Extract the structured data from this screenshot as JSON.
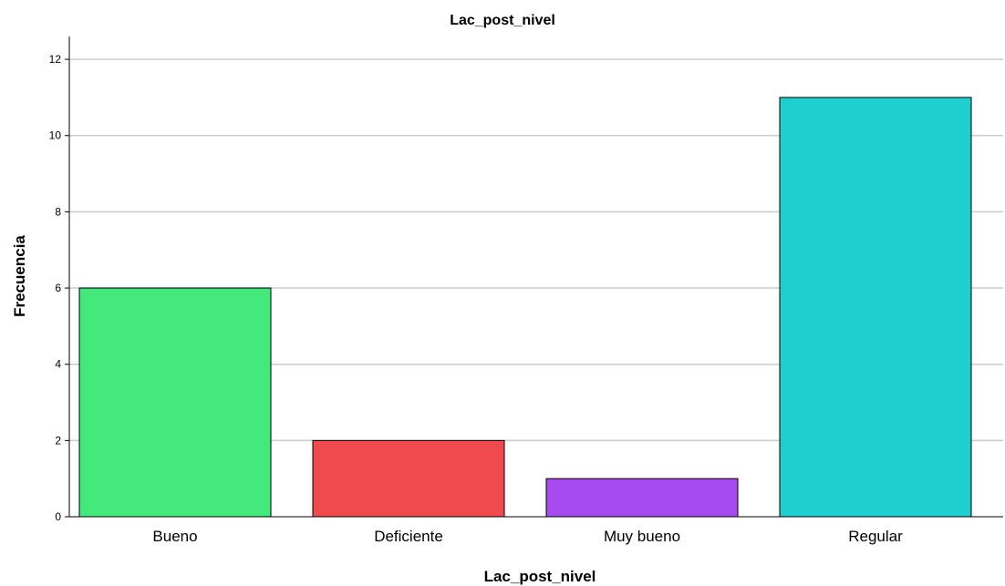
{
  "chart_data": {
    "type": "bar",
    "title": "Lac_post_nivel",
    "xlabel": "Lac_post_nivel",
    "ylabel": "Frecuencia",
    "categories": [
      "Bueno",
      "Deficiente",
      "Muy bueno",
      "Regular"
    ],
    "values": [
      6,
      2,
      1,
      11
    ],
    "colors": [
      "#43e97b",
      "#ef4b4e",
      "#a64bef",
      "#1ecfcf"
    ],
    "bar_outline": "#000000",
    "grid_color": "#cccccc",
    "ylim": [
      0,
      12.6
    ],
    "yticks": [
      0,
      2,
      4,
      6,
      8,
      10,
      12
    ],
    "grid": true,
    "legend": "none"
  }
}
